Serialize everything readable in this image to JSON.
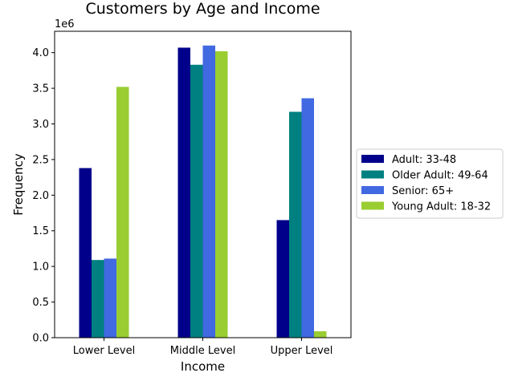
{
  "chart_data": {
    "type": "bar",
    "title": "Customers by Age and Income",
    "xlabel": "Income",
    "ylabel": "Frequency",
    "offset_text": "1e6",
    "categories": [
      "Lower Level",
      "Middle Level",
      "Upper Level"
    ],
    "series": [
      {
        "name": "Adult: 33-48",
        "color": "#00008b",
        "values": [
          2380000,
          4070000,
          1650000
        ]
      },
      {
        "name": "Older Adult: 49-64",
        "color": "#008080",
        "values": [
          1090000,
          3830000,
          3170000
        ]
      },
      {
        "name": "Senior: 65+",
        "color": "#4169e1",
        "values": [
          1110000,
          4100000,
          3360000
        ]
      },
      {
        "name": "Young Adult: 18-32",
        "color": "#9acd32",
        "values": [
          3520000,
          4020000,
          90000
        ]
      }
    ],
    "ylim": [
      0,
      4300000
    ],
    "yticks": [
      0,
      500000,
      1000000,
      1500000,
      2000000,
      2500000,
      3000000,
      3500000,
      4000000
    ],
    "ytick_labels": [
      "0.0",
      "0.5",
      "1.0",
      "1.5",
      "2.0",
      "2.5",
      "3.0",
      "3.5",
      "4.0"
    ],
    "grid": false,
    "legend_position": "center-right outside"
  }
}
